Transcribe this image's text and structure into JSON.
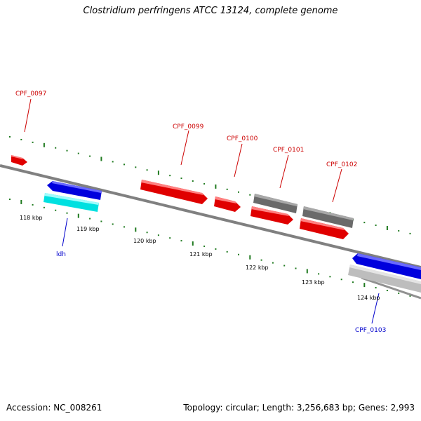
{
  "title": "Clostridium perfringens ATCC 13124, complete genome",
  "accession_text": "Accession: NC_008261",
  "topology_text": "Topology: circular; Length: 3,256,683 bp; Genes: 2,993",
  "colors": {
    "backbone": "#808080",
    "tick": "#1f7a1f",
    "red_gene": "#ff0000",
    "blue_gene": "#0000ff",
    "cyan_gene": "#00ffff",
    "gray_gene": "#6e6e6e",
    "lightgray_gene": "#c8c8c8",
    "label_red": "#cc0000",
    "label_blue": "#0000cc"
  },
  "ticks": [
    {
      "label": "118 kbp"
    },
    {
      "label": "119 kbp"
    },
    {
      "label": "120 kbp"
    },
    {
      "label": "121 kbp"
    },
    {
      "label": "122 kbp"
    },
    {
      "label": "123 kbp"
    },
    {
      "label": "124 kbp"
    }
  ],
  "gene_labels": [
    {
      "text": "CPF_0097",
      "color_key": "label_red"
    },
    {
      "text": "CPF_0099",
      "color_key": "label_red"
    },
    {
      "text": "CPF_0100",
      "color_key": "label_red"
    },
    {
      "text": "CPF_0101",
      "color_key": "label_red"
    },
    {
      "text": "CPF_0102",
      "color_key": "label_red"
    },
    {
      "text": "ldh",
      "color_key": "label_blue"
    },
    {
      "text": "CPF_0103",
      "color_key": "label_blue"
    }
  ]
}
